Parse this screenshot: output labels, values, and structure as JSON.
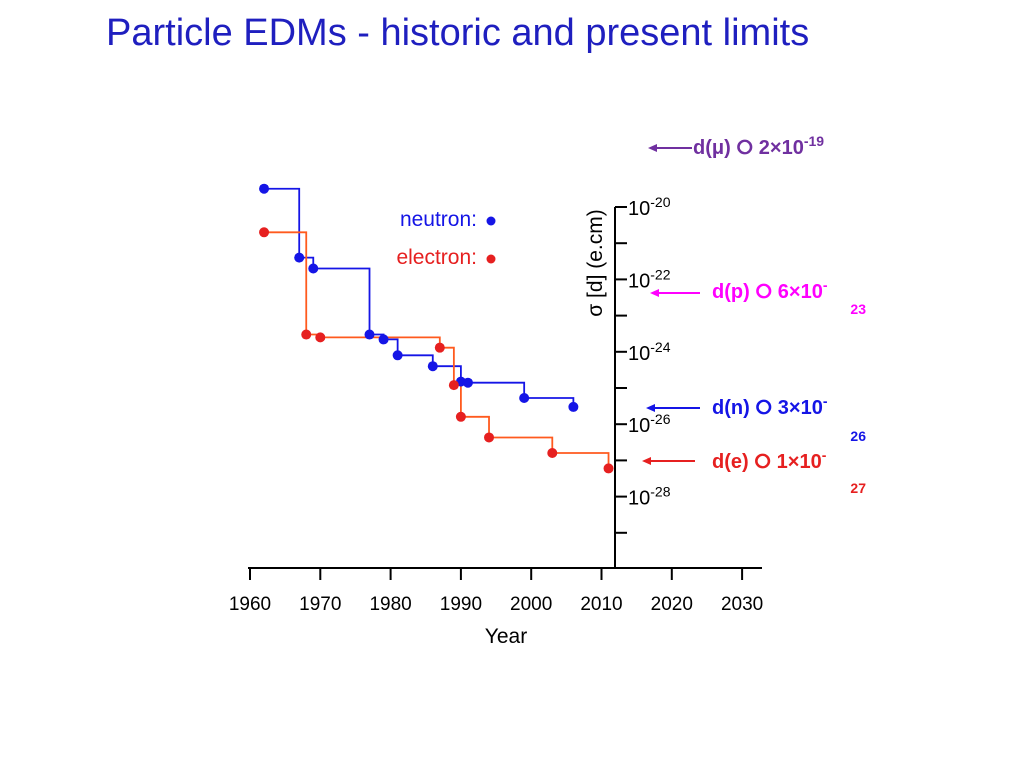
{
  "title": "Particle EDMs - historic and present limits",
  "colors": {
    "neutron": "#1515e6",
    "electron": "#e62020",
    "electron_step": "#ff5a1e",
    "muon": "#7030a0",
    "proton": "#ff00ff",
    "axis": "#000000"
  },
  "chart_data": {
    "type": "scatter",
    "xlabel": "Year",
    "ylabel": "σ [d]  (e.cm)",
    "xlim": [
      1960,
      2030
    ],
    "x_ticks": [
      "1960",
      "1970",
      "1980",
      "1990",
      "2000",
      "2010",
      "2020",
      "2030"
    ],
    "y_scale": "log",
    "y_ticks": [
      {
        "value": 1e-20,
        "base": "10",
        "exp": "-20"
      },
      {
        "value": 1e-22,
        "base": "10",
        "exp": "-22"
      },
      {
        "value": 1e-24,
        "base": "10",
        "exp": "-24"
      },
      {
        "value": 1e-26,
        "base": "10",
        "exp": "-26"
      },
      {
        "value": 1e-28,
        "base": "10",
        "exp": "-28"
      }
    ],
    "legend_location": "upper-left",
    "series": [
      {
        "name": "neutron:",
        "color": "#1515e6",
        "points": [
          {
            "x": 1962,
            "y": 3.2e-20
          },
          {
            "x": 1967,
            "y": 4e-22
          },
          {
            "x": 1969,
            "y": 2e-22
          },
          {
            "x": 1977,
            "y": 3e-24
          },
          {
            "x": 1979,
            "y": 2.2e-24
          },
          {
            "x": 1981,
            "y": 8e-25
          },
          {
            "x": 1986,
            "y": 4e-25
          },
          {
            "x": 1990,
            "y": 1.5e-25
          },
          {
            "x": 1991,
            "y": 1.4e-25
          },
          {
            "x": 1999,
            "y": 5.3e-26
          },
          {
            "x": 2006,
            "y": 3e-26
          }
        ]
      },
      {
        "name": "electron:",
        "color": "#e62020",
        "points": [
          {
            "x": 1962,
            "y": 2e-21
          },
          {
            "x": 1968,
            "y": 3e-24
          },
          {
            "x": 1970,
            "y": 2.5e-24
          },
          {
            "x": 1987,
            "y": 1.3e-24
          },
          {
            "x": 1989,
            "y": 1.2e-25
          },
          {
            "x": 1990,
            "y": 1.6e-26
          },
          {
            "x": 1994,
            "y": 4.3e-27
          },
          {
            "x": 2003,
            "y": 1.6e-27
          },
          {
            "x": 2011,
            "y": 6e-28
          }
        ]
      }
    ],
    "annotations": [
      {
        "particle": "d(μ)",
        "symbol": "⭘",
        "mant": "2×10",
        "exp": "-19",
        "value": 2e-19,
        "color": "#7030a0"
      },
      {
        "particle": "d(p)",
        "symbol": "⭘",
        "mant": "6×10",
        "exp": "-23",
        "value": 6e-23,
        "color": "#ff00ff"
      },
      {
        "particle": "d(n)",
        "symbol": "⭘",
        "mant": "3×10",
        "exp": "-26",
        "value": 3e-26,
        "color": "#1515e6"
      },
      {
        "particle": "d(e)",
        "symbol": "⭘",
        "mant": "1×10",
        "exp": "-27",
        "value": 1e-27,
        "color": "#e62020"
      }
    ]
  }
}
